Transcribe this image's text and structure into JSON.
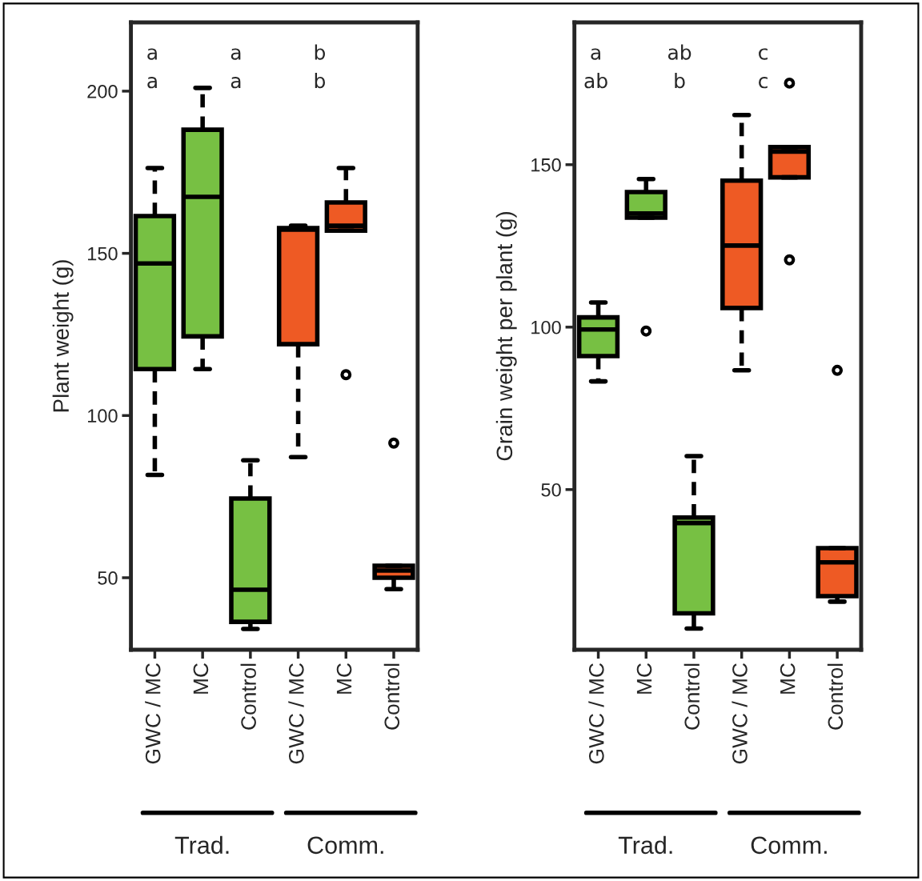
{
  "chart_data": [
    {
      "type": "box",
      "ylabel": "Plant weight (g)",
      "categories": [
        "GWC / MC",
        "MC",
        "Control",
        "GWC / MC",
        "MC",
        "Control"
      ],
      "colors": [
        "#77c043",
        "#77c043",
        "#77c043",
        "#ee5a24",
        "#ee5a24",
        "#ee5a24"
      ],
      "boxes": [
        {
          "low": 81.7,
          "q1": 114.3,
          "median": 146.9,
          "q3": 161.5,
          "high": 176.3
        },
        {
          "low": 114.3,
          "q1": 124.4,
          "median": 167.4,
          "q3": 188.1,
          "high": 201
        },
        {
          "low": 34.2,
          "q1": 36.4,
          "median": 46.3,
          "q3": 74.4,
          "high": 86.2
        },
        {
          "low": 87.2,
          "q1": 122,
          "median": 157.3,
          "q3": 157.8,
          "high": 158.5
        },
        {
          "low": 157,
          "q1": 157,
          "median": 158.5,
          "q3": 165.7,
          "high": 176.3,
          "outliers": [
            112.6
          ]
        },
        {
          "low": 46.5,
          "q1": 50,
          "median": 52.2,
          "q3": 53.7,
          "high": 53.7,
          "outliers": [
            91.5
          ]
        }
      ],
      "ylim": [
        27.8,
        221.2
      ],
      "yticks": [
        50,
        100,
        150,
        200
      ],
      "grid": false,
      "annotations": [
        "a\na",
        "a\na",
        "b\nb",
        "Trad.",
        "Comm."
      ]
    },
    {
      "type": "box",
      "ylabel": "Grain weight per plant (g)",
      "categories": [
        "GWC / MC",
        "MC",
        "Control",
        "GWC / MC",
        "MC",
        "Control"
      ],
      "colors": [
        "#77c043",
        "#77c043",
        "#77c043",
        "#ee5a24",
        "#ee5a24",
        "#ee5a24"
      ],
      "boxes": [
        {
          "low": 83.3,
          "q1": 91.1,
          "median": 99.3,
          "q3": 103,
          "high": 107.6
        },
        {
          "low": 133.7,
          "q1": 133.7,
          "median": 135,
          "q3": 141.6,
          "high": 145.6,
          "outliers": [
            98.8
          ]
        },
        {
          "low": 7.2,
          "q1": 11.9,
          "median": 39.7,
          "q3": 41.4,
          "high": 60.3
        },
        {
          "low": 86.7,
          "q1": 105.9,
          "median": 125.1,
          "q3": 145.1,
          "high": 165.3
        },
        {
          "low": 146.1,
          "q1": 146.1,
          "median": 154,
          "q3": 155.4,
          "high": 155.4,
          "outliers": [
            175.1,
            120.7
          ]
        },
        {
          "low": 15.5,
          "q1": 17.2,
          "median": 27.6,
          "q3": 32,
          "high": 32,
          "outliers": [
            86.7
          ]
        }
      ],
      "ylim": [
        0.7,
        193.8
      ],
      "yticks": [
        50,
        100,
        150
      ],
      "grid": false,
      "annotations": [
        "a\nab",
        "ab\nb",
        "c\nc",
        "Trad.",
        "Comm."
      ]
    }
  ]
}
